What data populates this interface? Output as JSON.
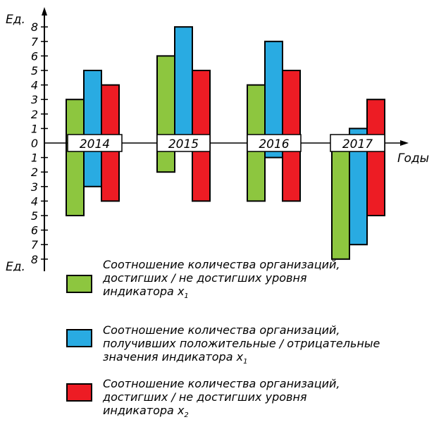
{
  "chart_data": {
    "type": "bar",
    "ylabel_top": "Ед.",
    "ylabel_bottom": "Ед.",
    "xlabel": "Годы",
    "ylim": [
      -8,
      8
    ],
    "y_ticks_top": [
      "1",
      "2",
      "3",
      "4",
      "5",
      "6",
      "7",
      "8"
    ],
    "y_ticks_bottom": [
      "1",
      "2",
      "3",
      "4",
      "5",
      "6",
      "7",
      "8"
    ],
    "y_zero_label": "0",
    "categories": [
      "2014",
      "2015",
      "2016",
      "2017"
    ],
    "series": [
      {
        "color": "#8dc63f",
        "pos": [
          3,
          6,
          4,
          0
        ],
        "neg": [
          5,
          2,
          4,
          8
        ]
      },
      {
        "color": "#29abe2",
        "pos": [
          5,
          8,
          7,
          1
        ],
        "neg": [
          3,
          0,
          1,
          7
        ]
      },
      {
        "color": "#ed1c24",
        "pos": [
          4,
          5,
          5,
          3
        ],
        "neg": [
          4,
          4,
          4,
          5
        ]
      }
    ]
  },
  "legend": [
    {
      "color": "#8dc63f",
      "lines": [
        "Соотношение количества организаций,",
        "достигших / не достигших уровня"
      ],
      "last_line": "индикатора ",
      "var": "x",
      "sub": "1"
    },
    {
      "color": "#29abe2",
      "lines": [
        "Соотношение количества организаций,",
        "получивших положительные / отрицательные"
      ],
      "last_line": "значения индикатора ",
      "var": "x",
      "sub": "1"
    },
    {
      "color": "#ed1c24",
      "lines": [
        "Соотношение количества организаций,",
        "достигших / не достигших уровня"
      ],
      "last_line": "индикатора ",
      "var": "x",
      "sub": "2"
    }
  ]
}
